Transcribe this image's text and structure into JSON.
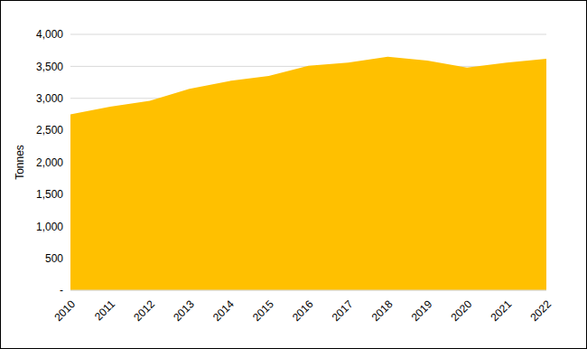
{
  "chart_data": {
    "type": "area",
    "y_label": "Tonnes",
    "categories": [
      "2010",
      "2011",
      "2012",
      "2013",
      "2014",
      "2015",
      "2016",
      "2017",
      "2018",
      "2019",
      "2020",
      "2021",
      "2022"
    ],
    "values": [
      2750,
      2870,
      2960,
      3150,
      3270,
      3350,
      3510,
      3560,
      3650,
      3590,
      3480,
      3560,
      3620
    ],
    "color": "#ffc000",
    "ylim": [
      0,
      4000
    ],
    "yticks": [
      {
        "value": 0,
        "label": "-"
      },
      500,
      {
        "value": 1000,
        "label": "1,000"
      },
      {
        "value": 1500,
        "label": "1,500"
      },
      {
        "value": 2000,
        "label": "2,000"
      },
      {
        "value": 2500,
        "label": "2,500"
      },
      {
        "value": 3000,
        "label": "3,000"
      },
      {
        "value": 3500,
        "label": "3,500"
      },
      {
        "value": 4000,
        "label": "4,000"
      }
    ],
    "grid": true
  }
}
